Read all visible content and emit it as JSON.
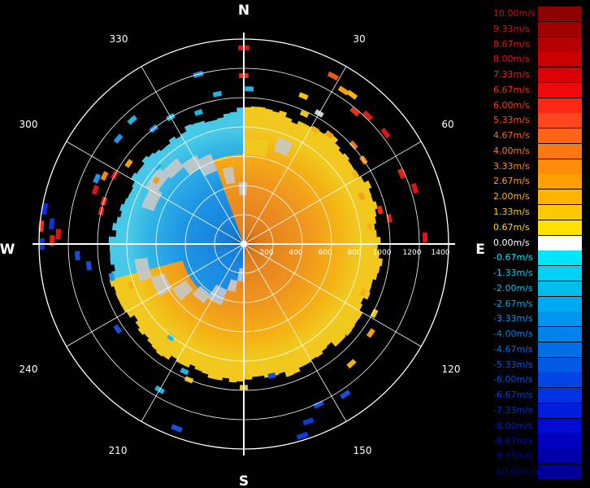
{
  "compass": {
    "north": "N",
    "east": "E",
    "south": "S",
    "west": "W"
  },
  "bearing_labels": [
    {
      "deg": 30,
      "text": "30"
    },
    {
      "deg": 60,
      "text": "60"
    },
    {
      "deg": 120,
      "text": "120"
    },
    {
      "deg": 150,
      "text": "150"
    },
    {
      "deg": 210,
      "text": "210"
    },
    {
      "deg": 240,
      "text": "240"
    },
    {
      "deg": 300,
      "text": "300"
    },
    {
      "deg": 330,
      "text": "330"
    }
  ],
  "range_labels": [
    "200",
    "400",
    "600",
    "800",
    "1000",
    "1200",
    "1400"
  ],
  "range_rings_m": [
    200,
    400,
    600,
    800,
    1000,
    1200,
    1400
  ],
  "max_range_m": 1400,
  "legend": [
    {
      "label": "10.00m/s",
      "color": "#8c0000",
      "label_color": "#c81414"
    },
    {
      "label": "9.33m/s",
      "color": "#a00000",
      "label_color": "#d21414"
    },
    {
      "label": "8.67m/s",
      "color": "#b40000",
      "label_color": "#dc1414"
    },
    {
      "label": "8.00m/s",
      "color": "#c80000",
      "label_color": "#e61414"
    },
    {
      "label": "7.33m/s",
      "color": "#dc0000",
      "label_color": "#f01e14"
    },
    {
      "label": "6.67m/s",
      "color": "#f00a0a",
      "label_color": "#ff2814"
    },
    {
      "label": "6.00m/s",
      "color": "#ff2814",
      "label_color": "#ff3c14"
    },
    {
      "label": "5.33m/s",
      "color": "#ff461e",
      "label_color": "#ff5014"
    },
    {
      "label": "4.67m/s",
      "color": "#ff6414",
      "label_color": "#ff6414"
    },
    {
      "label": "4.00m/s",
      "color": "#ff7814",
      "label_color": "#ff7814"
    },
    {
      "label": "3.33m/s",
      "color": "#ff8c0a",
      "label_color": "#ff8c14"
    },
    {
      "label": "2.67m/s",
      "color": "#ffa000",
      "label_color": "#ffa014"
    },
    {
      "label": "2.00m/s",
      "color": "#ffb400",
      "label_color": "#ffb414"
    },
    {
      "label": "1.33m/s",
      "color": "#ffc800",
      "label_color": "#ffc814"
    },
    {
      "label": "0.67m/s",
      "color": "#ffe100",
      "label_color": "#ffdc14"
    },
    {
      "label": "0.00m/s",
      "color": "#ffffff",
      "label_color": "#ffffff"
    },
    {
      "label": "-0.67m/s",
      "color": "#00e6ff",
      "label_color": "#00e6ff"
    },
    {
      "label": "-1.33m/s",
      "color": "#00d2f5",
      "label_color": "#00d2f5"
    },
    {
      "label": "-2.00m/s",
      "color": "#00beeb",
      "label_color": "#00bef0"
    },
    {
      "label": "-2.67m/s",
      "color": "#00aaf0",
      "label_color": "#00aaf0"
    },
    {
      "label": "-3.33m/s",
      "color": "#0096f0",
      "label_color": "#0096f0"
    },
    {
      "label": "-4.00m/s",
      "color": "#0082eb",
      "label_color": "#0082eb"
    },
    {
      "label": "-4.67m/s",
      "color": "#006ee6",
      "label_color": "#006ee6"
    },
    {
      "label": "-5.33m/s",
      "color": "#005ae6",
      "label_color": "#005ae6"
    },
    {
      "label": "-6.00m/s",
      "color": "#0046e6",
      "label_color": "#0050e6"
    },
    {
      "label": "-6.67m/s",
      "color": "#0032e6",
      "label_color": "#0040e1"
    },
    {
      "label": "-7.33m/s",
      "color": "#001edc",
      "label_color": "#0030d2"
    },
    {
      "label": "-8.00m/s",
      "color": "#000ad2",
      "label_color": "#0020c8"
    },
    {
      "label": "-8.67m/s",
      "color": "#0000be",
      "label_color": "#0014b4"
    },
    {
      "label": "-9.33m/s",
      "color": "#0000aa",
      "label_color": "#000aa0"
    },
    {
      "label": "-10.00m/s",
      "color": "#000096",
      "label_color": "#000a8c"
    }
  ],
  "field": {
    "bulk_outer_range_m": 960,
    "colors": {
      "blue_deep": "#1478dc",
      "blue_mid": "#1e96e6",
      "blue_light": "#32b4e6",
      "cyan": "#46c8e6",
      "orange_core": "#e6781e",
      "orange": "#f0961e",
      "amber": "#f5b414",
      "yellow": "#f0c81e",
      "gray": "#c8c8c8"
    }
  },
  "scatter": [
    {
      "az": 0,
      "r": 1340,
      "color": "#dc1414"
    },
    {
      "az": 0,
      "r": 1150,
      "color": "#e63214"
    },
    {
      "az": 2,
      "r": 1060,
      "color": "#1eb4e6"
    },
    {
      "az": 28,
      "r": 1300,
      "color": "#e65a14"
    },
    {
      "az": 33,
      "r": 1250,
      "color": "#f0a014"
    },
    {
      "az": 36,
      "r": 1260,
      "color": "#f0b414"
    },
    {
      "az": 40,
      "r": 1180,
      "color": "#e63214"
    },
    {
      "az": 44,
      "r": 1220,
      "color": "#dc1e14"
    },
    {
      "az": 52,
      "r": 1230,
      "color": "#dc1414"
    },
    {
      "az": 22,
      "r": 1090,
      "color": "#f0c814"
    },
    {
      "az": 25,
      "r": 980,
      "color": "#f0c814"
    },
    {
      "az": 30,
      "r": 1030,
      "color": "#d2d2d2"
    },
    {
      "az": 32,
      "r": 920,
      "color": "#f0b414"
    },
    {
      "az": 38,
      "r": 950,
      "color": "#f0a014"
    },
    {
      "az": 45,
      "r": 880,
      "color": "#f0c814"
    },
    {
      "az": 48,
      "r": 1010,
      "color": "#e6781e"
    },
    {
      "az": 55,
      "r": 1000,
      "color": "#f08c14"
    },
    {
      "az": 58,
      "r": 900,
      "color": "#f0b414"
    },
    {
      "az": 66,
      "r": 1180,
      "color": "#dc1e14"
    },
    {
      "az": 72,
      "r": 1230,
      "color": "#dc1414"
    },
    {
      "az": 68,
      "r": 870,
      "color": "#f0a014"
    },
    {
      "az": 76,
      "r": 960,
      "color": "#e63214"
    },
    {
      "az": 80,
      "r": 1010,
      "color": "#dc1e14"
    },
    {
      "az": 82,
      "r": 870,
      "color": "#f0b414"
    },
    {
      "az": 88,
      "r": 1240,
      "color": "#dc1414"
    },
    {
      "az": 112,
      "r": 880,
      "color": "#f0b414"
    },
    {
      "az": 118,
      "r": 1010,
      "color": "#f0c814"
    },
    {
      "az": 125,
      "r": 1060,
      "color": "#f0a014"
    },
    {
      "az": 130,
      "r": 930,
      "color": "#f0c814"
    },
    {
      "az": 138,
      "r": 1100,
      "color": "#f0b414"
    },
    {
      "az": 146,
      "r": 1240,
      "color": "#1450dc"
    },
    {
      "az": 155,
      "r": 1210,
      "color": "#1450dc"
    },
    {
      "az": 160,
      "r": 1290,
      "color": "#0a3cdc"
    },
    {
      "az": 163,
      "r": 1370,
      "color": "#0a3cdc"
    },
    {
      "az": 168,
      "r": 920,
      "color": "#1450dc"
    },
    {
      "az": 178,
      "r": 910,
      "color": "#f0c814"
    },
    {
      "az": 180,
      "r": 980,
      "color": "#f0c814"
    },
    {
      "az": 196,
      "r": 820,
      "color": "#f0c814"
    },
    {
      "az": 200,
      "r": 900,
      "color": "#f0c814"
    },
    {
      "az": 202,
      "r": 1000,
      "color": "#f0b414"
    },
    {
      "az": 205,
      "r": 960,
      "color": "#1eb4e6"
    },
    {
      "az": 210,
      "r": 1150,
      "color": "#1eb4e6"
    },
    {
      "az": 200,
      "r": 1340,
      "color": "#1450dc"
    },
    {
      "az": 218,
      "r": 810,
      "color": "#1eb4e6"
    },
    {
      "az": 236,
      "r": 1040,
      "color": "#1450dc"
    },
    {
      "az": 250,
      "r": 820,
      "color": "#f0b414"
    },
    {
      "az": 256,
      "r": 930,
      "color": "#1e96e6"
    },
    {
      "az": 262,
      "r": 1070,
      "color": "#1450dc"
    },
    {
      "az": 266,
      "r": 1140,
      "color": "#1450dc"
    },
    {
      "az": 270,
      "r": 1380,
      "color": "#1432dc"
    },
    {
      "az": 271,
      "r": 1310,
      "color": "#e61e14"
    },
    {
      "az": 273,
      "r": 1270,
      "color": "#dc1414"
    },
    {
      "az": 275,
      "r": 1390,
      "color": "#f03214"
    },
    {
      "az": 276,
      "r": 1320,
      "color": "#1432dc"
    },
    {
      "az": 280,
      "r": 1380,
      "color": "#1428dc"
    },
    {
      "az": 283,
      "r": 1000,
      "color": "#dc1e14"
    },
    {
      "az": 287,
      "r": 1000,
      "color": "#e63214"
    },
    {
      "az": 290,
      "r": 1080,
      "color": "#dc1414"
    },
    {
      "az": 294,
      "r": 1100,
      "color": "#1e96e6"
    },
    {
      "az": 296,
      "r": 1060,
      "color": "#f08c14"
    },
    {
      "az": 298,
      "r": 1000,
      "color": "#dc1414"
    },
    {
      "az": 305,
      "r": 960,
      "color": "#f0a014"
    },
    {
      "az": 310,
      "r": 1120,
      "color": "#1e96e6"
    },
    {
      "az": 318,
      "r": 1140,
      "color": "#1eb4e6"
    },
    {
      "az": 322,
      "r": 1000,
      "color": "#1e96e6"
    },
    {
      "az": 330,
      "r": 1000,
      "color": "#1eb4e6"
    },
    {
      "az": 341,
      "r": 950,
      "color": "#1eb4e6"
    },
    {
      "az": 350,
      "r": 1040,
      "color": "#1eb4e6"
    },
    {
      "az": 345,
      "r": 1200,
      "color": "#1e96e6"
    },
    {
      "az": 306,
      "r": 740,
      "color": "#f0a014"
    },
    {
      "az": 312,
      "r": 790,
      "color": "#1eb4e6"
    }
  ]
}
